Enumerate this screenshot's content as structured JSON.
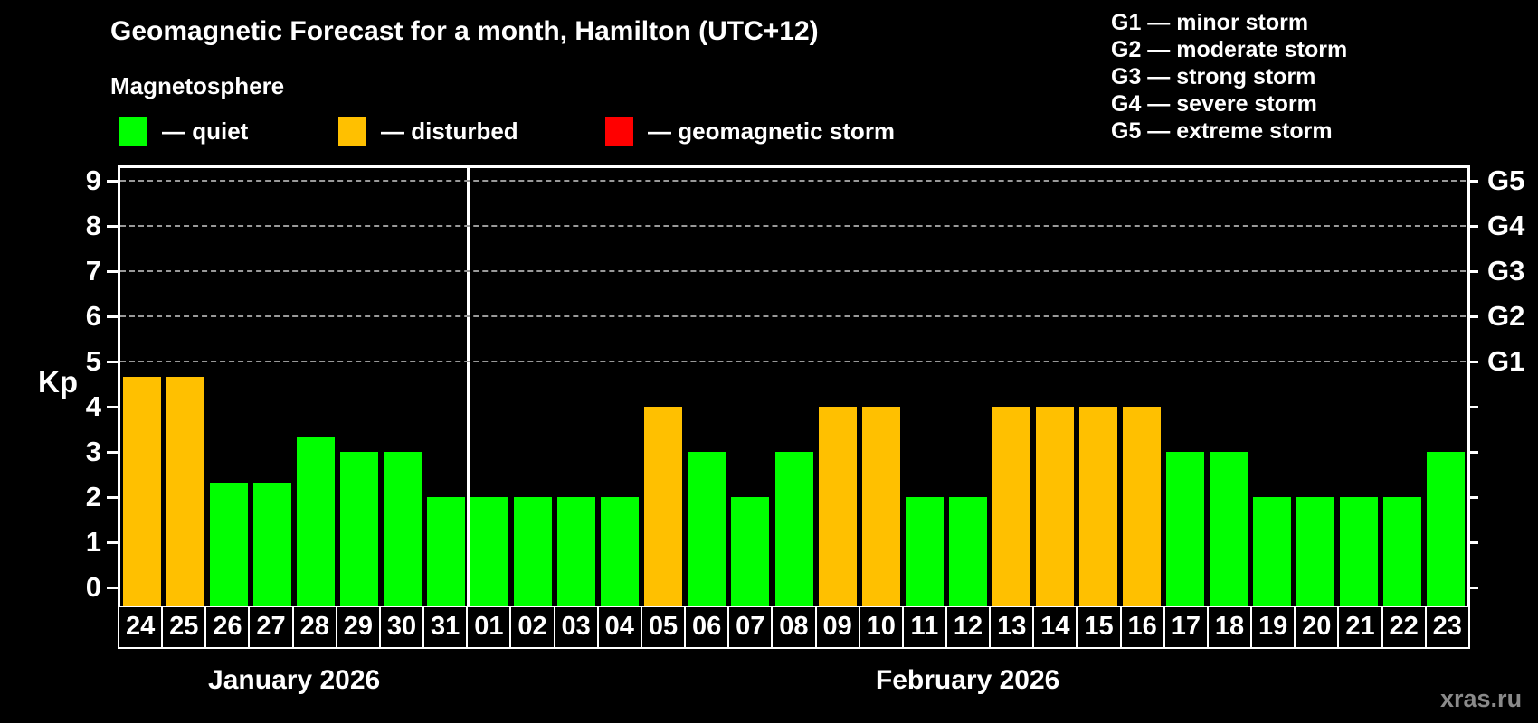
{
  "title": "Geomagnetic Forecast for a month, Hamilton (UTC+12)",
  "subtitle": "Magnetosphere",
  "legend": [
    {
      "name": "quiet",
      "label": "— quiet",
      "color": "#00ff00"
    },
    {
      "name": "disturbed",
      "label": "— disturbed",
      "color": "#ffc000"
    },
    {
      "name": "storm",
      "label": "— geomagnetic storm",
      "color": "#ff0000"
    }
  ],
  "storm_scale": [
    "G1 — minor storm",
    "G2 — moderate storm",
    "G3 — strong storm",
    "G4 — severe storm",
    "G5 — extreme storm"
  ],
  "watermark": "xras.ru",
  "chart_data": {
    "type": "bar",
    "ylabel": "Kp",
    "ylim": [
      0,
      9
    ],
    "yticks": [
      0,
      1,
      2,
      3,
      4,
      5,
      6,
      7,
      8,
      9
    ],
    "gridlines_at_kp": [
      5,
      6,
      7,
      8,
      9
    ],
    "grid": "dashed horizontal lines at storm levels only",
    "right_axis_labels": [
      {
        "kp": 5,
        "label": "G1"
      },
      {
        "kp": 6,
        "label": "G2"
      },
      {
        "kp": 7,
        "label": "G3"
      },
      {
        "kp": 8,
        "label": "G4"
      },
      {
        "kp": 9,
        "label": "G5"
      }
    ],
    "status_colors": {
      "quiet": "#00ff00",
      "disturbed": "#ffc000",
      "storm": "#ff0000"
    },
    "months": [
      {
        "label": "January 2026",
        "days": [
          {
            "day": "24",
            "kp": 4.67,
            "status": "disturbed"
          },
          {
            "day": "25",
            "kp": 4.67,
            "status": "disturbed"
          },
          {
            "day": "26",
            "kp": 2.33,
            "status": "quiet"
          },
          {
            "day": "27",
            "kp": 2.33,
            "status": "quiet"
          },
          {
            "day": "28",
            "kp": 3.33,
            "status": "quiet"
          },
          {
            "day": "29",
            "kp": 3,
            "status": "quiet"
          },
          {
            "day": "30",
            "kp": 3,
            "status": "quiet"
          },
          {
            "day": "31",
            "kp": 2,
            "status": "quiet"
          }
        ]
      },
      {
        "label": "February 2026",
        "days": [
          {
            "day": "01",
            "kp": 2,
            "status": "quiet"
          },
          {
            "day": "02",
            "kp": 2,
            "status": "quiet"
          },
          {
            "day": "03",
            "kp": 2,
            "status": "quiet"
          },
          {
            "day": "04",
            "kp": 2,
            "status": "quiet"
          },
          {
            "day": "05",
            "kp": 4,
            "status": "disturbed"
          },
          {
            "day": "06",
            "kp": 3,
            "status": "quiet"
          },
          {
            "day": "07",
            "kp": 2,
            "status": "quiet"
          },
          {
            "day": "08",
            "kp": 3,
            "status": "quiet"
          },
          {
            "day": "09",
            "kp": 4,
            "status": "disturbed"
          },
          {
            "day": "10",
            "kp": 4,
            "status": "disturbed"
          },
          {
            "day": "11",
            "kp": 2,
            "status": "quiet"
          },
          {
            "day": "12",
            "kp": 2,
            "status": "quiet"
          },
          {
            "day": "13",
            "kp": 4,
            "status": "disturbed"
          },
          {
            "day": "14",
            "kp": 4,
            "status": "disturbed"
          },
          {
            "day": "15",
            "kp": 4,
            "status": "disturbed"
          },
          {
            "day": "16",
            "kp": 4,
            "status": "disturbed"
          },
          {
            "day": "17",
            "kp": 3,
            "status": "quiet"
          },
          {
            "day": "18",
            "kp": 3,
            "status": "quiet"
          },
          {
            "day": "19",
            "kp": 2,
            "status": "quiet"
          },
          {
            "day": "20",
            "kp": 2,
            "status": "quiet"
          },
          {
            "day": "21",
            "kp": 2,
            "status": "quiet"
          },
          {
            "day": "22",
            "kp": 2,
            "status": "quiet"
          },
          {
            "day": "23",
            "kp": 3,
            "status": "quiet"
          }
        ]
      }
    ]
  }
}
